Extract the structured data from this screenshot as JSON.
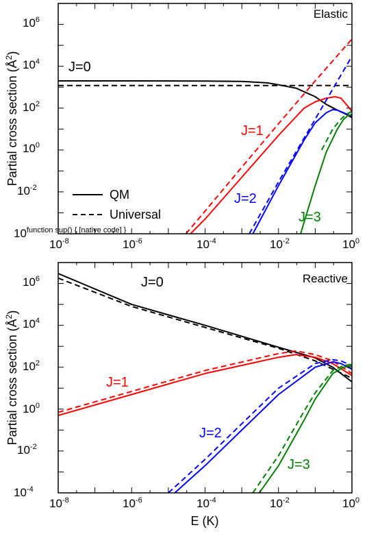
{
  "chart_data": [
    {
      "type": "line",
      "panel_label": "Elastic",
      "xlabel": "",
      "ylabel": "Partial cross section (Å²)",
      "xscale": "log",
      "yscale": "log",
      "xlim": [
        1e-08,
        1
      ],
      "ylim": [
        0.0001,
        10000000.0
      ],
      "x_ticks": [
        "10-8",
        "10-6",
        "10-4",
        "10-2",
        "100"
      ],
      "y_ticks": [
        "10-4",
        "10-2",
        "100",
        "102",
        "104",
        "106"
      ],
      "legend": {
        "placement": "bottom-left",
        "entries": [
          {
            "label": "QM",
            "style": "solid"
          },
          {
            "label": "Universal",
            "style": "dashed"
          }
        ]
      },
      "series_labels": [
        {
          "text": "J=0",
          "color": "#000000"
        },
        {
          "text": "J=1",
          "color": "#ff0000"
        },
        {
          "text": "J=2",
          "color": "#0000ff"
        },
        {
          "text": "J=3",
          "color": "#008000"
        }
      ],
      "series": [
        {
          "name": "J=0",
          "method": "QM",
          "color": "#000000",
          "style": "solid",
          "x": [
            1e-08,
            1e-06,
            0.0001,
            0.001,
            0.005,
            0.01,
            0.03,
            0.1,
            0.2,
            0.4,
            0.7,
            1
          ],
          "y": [
            2000,
            2000,
            1950,
            1900,
            1600,
            1300,
            900,
            350,
            150,
            80,
            50,
            35
          ]
        },
        {
          "name": "J=0",
          "method": "Universal",
          "color": "#000000",
          "style": "dashed",
          "x": [
            1e-08,
            1
          ],
          "y": [
            1200,
            1200
          ]
        },
        {
          "name": "J=1",
          "method": "QM",
          "color": "#ff0000",
          "style": "solid",
          "x": [
            4e-05,
            0.0001,
            0.001,
            0.01,
            0.05,
            0.1,
            0.2,
            0.35,
            0.5,
            0.7,
            1
          ],
          "y": [
            0.0001,
            0.0005,
            0.05,
            5,
            100,
            200,
            300,
            350,
            300,
            150,
            70
          ]
        },
        {
          "name": "J=1",
          "method": "Universal",
          "color": "#ff0000",
          "style": "dashed",
          "x": [
            3e-05,
            0.0001,
            0.001,
            0.01,
            0.1,
            1
          ],
          "y": [
            0.0001,
            0.0012,
            0.15,
            18,
            2000,
            200000.0
          ]
        },
        {
          "name": "J=2",
          "method": "QM",
          "color": "#0000ff",
          "style": "solid",
          "x": [
            0.002,
            0.01,
            0.05,
            0.1,
            0.2,
            0.3,
            0.4,
            0.6,
            1
          ],
          "y": [
            0.0001,
            0.02,
            3,
            20,
            60,
            85,
            80,
            60,
            40
          ]
        },
        {
          "name": "J=2",
          "method": "Universal",
          "color": "#0000ff",
          "style": "dashed",
          "x": [
            0.0016,
            0.01,
            0.1,
            1
          ],
          "y": [
            0.0001,
            0.03,
            30,
            30000.0
          ]
        },
        {
          "name": "J=3",
          "method": "QM",
          "color": "#008000",
          "style": "solid",
          "x": [
            0.04,
            0.1,
            0.2,
            0.4,
            0.6,
            0.8,
            1
          ],
          "y": [
            0.0001,
            0.02,
            0.8,
            10,
            30,
            45,
            50
          ]
        },
        {
          "name": "J=3",
          "method": "Universal",
          "color": "#008000",
          "style": "dashed",
          "x": [
            0.15,
            0.3,
            0.5,
            0.7,
            1
          ],
          "y": [
            1,
            10,
            30,
            50,
            70
          ]
        }
      ]
    },
    {
      "type": "line",
      "panel_label": "Reactive",
      "xlabel": "E (K)",
      "ylabel": "Partial cross section (Å²)",
      "xscale": "log",
      "yscale": "log",
      "xlim": [
        1e-08,
        1
      ],
      "ylim": [
        0.0001,
        10000000.0
      ],
      "x_ticks": [
        "10-8",
        "10-6",
        "10-4",
        "10-2",
        "100"
      ],
      "y_ticks": [
        "10-4",
        "10-2",
        "100",
        "102",
        "104",
        "106"
      ],
      "series_labels": [
        {
          "text": "J=0",
          "color": "#000000"
        },
        {
          "text": "J=1",
          "color": "#ff0000"
        },
        {
          "text": "J=2",
          "color": "#0000ff"
        },
        {
          "text": "J=3",
          "color": "#008000"
        }
      ],
      "series": [
        {
          "name": "J=0",
          "method": "QM",
          "color": "#000000",
          "style": "solid",
          "x": [
            1e-08,
            1e-06,
            0.0001,
            0.001,
            0.01,
            0.1,
            0.3,
            1
          ],
          "y": [
            3000000.0,
            100000.0,
            10000.0,
            3000,
            900,
            280,
            100,
            20
          ]
        },
        {
          "name": "J=0",
          "method": "Universal",
          "color": "#000000",
          "style": "dashed",
          "x": [
            1e-08,
            1e-06,
            0.0001,
            0.001,
            0.01,
            0.1,
            1
          ],
          "y": [
            1800000.0,
            80000.0,
            8000,
            2500,
            800,
            200,
            30
          ]
        },
        {
          "name": "J=1",
          "method": "QM",
          "color": "#ff0000",
          "style": "solid",
          "x": [
            1e-08,
            1e-06,
            0.0001,
            0.01,
            0.03,
            0.1,
            0.3,
            1
          ],
          "y": [
            0.5,
            5,
            50,
            300,
            400,
            300,
            150,
            40
          ]
        },
        {
          "name": "J=1",
          "method": "Universal",
          "color": "#ff0000",
          "style": "dashed",
          "x": [
            1e-08,
            1e-06,
            0.0001,
            0.01,
            0.03,
            0.1,
            0.3,
            1
          ],
          "y": [
            0.7,
            7,
            70,
            450,
            600,
            400,
            200,
            50
          ]
        },
        {
          "name": "J=2",
          "method": "QM",
          "color": "#0000ff",
          "style": "solid",
          "x": [
            1.5e-05,
            0.0001,
            0.001,
            0.01,
            0.1,
            0.3,
            0.5,
            1
          ],
          "y": [
            0.0001,
            0.002,
            0.1,
            5,
            100,
            180,
            150,
            80
          ]
        },
        {
          "name": "J=2",
          "method": "Universal",
          "color": "#0000ff",
          "style": "dashed",
          "x": [
            1e-05,
            0.0001,
            0.001,
            0.01,
            0.1,
            0.3,
            0.5,
            1
          ],
          "y": [
            0.0001,
            0.004,
            0.2,
            10,
            150,
            230,
            200,
            120
          ]
        },
        {
          "name": "J=3",
          "method": "QM",
          "color": "#008000",
          "style": "solid",
          "x": [
            0.003,
            0.01,
            0.05,
            0.1,
            0.3,
            0.6,
            1
          ],
          "y": [
            0.0001,
            0.002,
            0.3,
            3,
            50,
            100,
            120
          ]
        },
        {
          "name": "J=3",
          "method": "Universal",
          "color": "#008000",
          "style": "dashed",
          "x": [
            0.002,
            0.01,
            0.05,
            0.1,
            0.3,
            0.6,
            1
          ],
          "y": [
            0.0001,
            0.006,
            0.8,
            6,
            70,
            120,
            140
          ]
        }
      ]
    }
  ]
}
